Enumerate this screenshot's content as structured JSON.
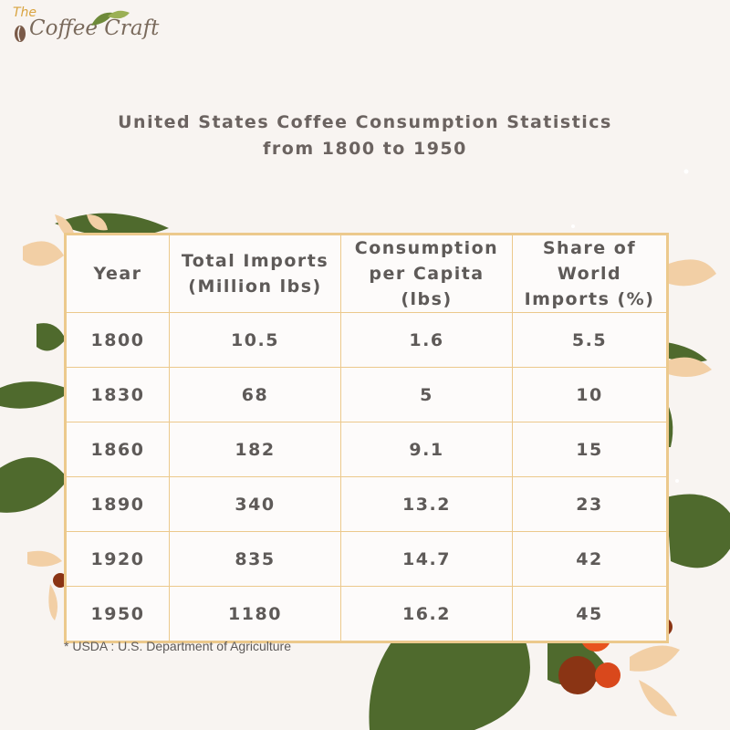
{
  "logo": {
    "the": "The",
    "name": "Coffee Craft"
  },
  "title": {
    "line1": "United States Coffee Consumption Statistics",
    "line2": "from 1800 to 1950"
  },
  "table": {
    "headers": {
      "year": "Year",
      "imports_l1": "Total Imports",
      "imports_l2": "(Million lbs)",
      "consumption_l1": "Consumption",
      "consumption_l2": "per Capita (lbs)",
      "share_l1": "Share of World",
      "share_l2": "Imports (%)"
    },
    "rows": [
      {
        "year": "1800",
        "imports": "10.5",
        "consumption": "1.6",
        "share": "5.5"
      },
      {
        "year": "1830",
        "imports": "68",
        "consumption": "5",
        "share": "10"
      },
      {
        "year": "1860",
        "imports": "182",
        "consumption": "9.1",
        "share": "15"
      },
      {
        "year": "1890",
        "imports": "340",
        "consumption": "13.2",
        "share": "23"
      },
      {
        "year": "1920",
        "imports": "835",
        "consumption": "14.7",
        "share": "42"
      },
      {
        "year": "1950",
        "imports": "1180",
        "consumption": "16.2",
        "share": "45"
      }
    ]
  },
  "footnote": "* USDA : U.S. Department of Agriculture",
  "colors": {
    "background": "#f8f4f1",
    "border": "#ecc98c",
    "leaf": "#4f6a2d",
    "petal": "#f2cfa5",
    "berry_red": "#d9481c",
    "berry_dark": "#8a3414",
    "text": "#5e5a58"
  }
}
